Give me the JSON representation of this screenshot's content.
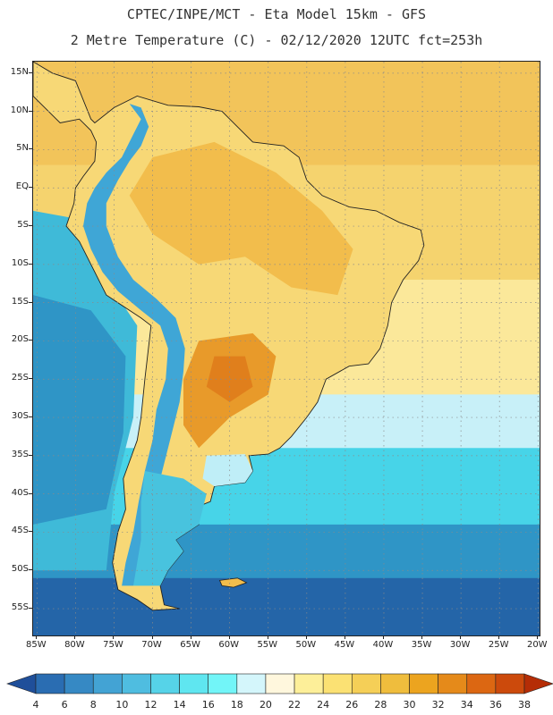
{
  "header": {
    "line1": "CPTEC/INPE/MCT -  Eta Model 15km - GFS",
    "line2": "2 Metre Temperature (C) - 02/12/2020 12UTC fct=253h"
  },
  "map": {
    "lat_labels": [
      "15N",
      "10N",
      "5N",
      "EQ",
      "5S",
      "10S",
      "15S",
      "20S",
      "25S",
      "30S",
      "35S",
      "40S",
      "45S",
      "50S",
      "55S"
    ],
    "lat_values": [
      15,
      10,
      5,
      0,
      -5,
      -10,
      -15,
      -20,
      -25,
      -30,
      -35,
      -40,
      -45,
      -50,
      -55
    ],
    "lon_labels": [
      "85W",
      "80W",
      "75W",
      "70W",
      "65W",
      "60W",
      "55W",
      "50W",
      "45W",
      "40W",
      "35W",
      "30W",
      "25W",
      "20W"
    ],
    "lon_values": [
      -85,
      -80,
      -75,
      -70,
      -65,
      -60,
      -55,
      -50,
      -45,
      -40,
      -35,
      -30,
      -25,
      -20
    ],
    "extent": {
      "lon_min": -85.5,
      "lon_max": -19.8,
      "lat_min": -58.5,
      "lat_max": 16.5
    },
    "colors": {
      "ocean_north": "#f2c45a",
      "ocean_trop": "#f5d36e",
      "ocean_subtrop": "#fbe89a",
      "ocean_cool": "#c8f0f8",
      "ocean_mid": "#47d4e8",
      "ocean_south": "#2f95c6",
      "ocean_deep": "#2465a8",
      "land_hot": "#e89a2a",
      "land_warm": "#f2bd4c",
      "land_mild": "#f7d876",
      "andes": "#3fa6d6",
      "patagonia": "#48c3de"
    }
  },
  "colorbar": {
    "labels": [
      "4",
      "6",
      "8",
      "10",
      "12",
      "14",
      "16",
      "18",
      "20",
      "22",
      "24",
      "26",
      "28",
      "30",
      "32",
      "34",
      "36",
      "38"
    ],
    "colors": [
      "#1f4f9a",
      "#2a6db2",
      "#3689c4",
      "#43a3d4",
      "#4fbde0",
      "#56d3e8",
      "#5fe6f0",
      "#72f5f8",
      "#d4f6fb",
      "#fff7dd",
      "#fdef99",
      "#fbe173",
      "#f5cf57",
      "#efbd3d",
      "#eca41f",
      "#e58a1a",
      "#dc6712",
      "#cc4a0c",
      "#b52d06"
    ]
  }
}
